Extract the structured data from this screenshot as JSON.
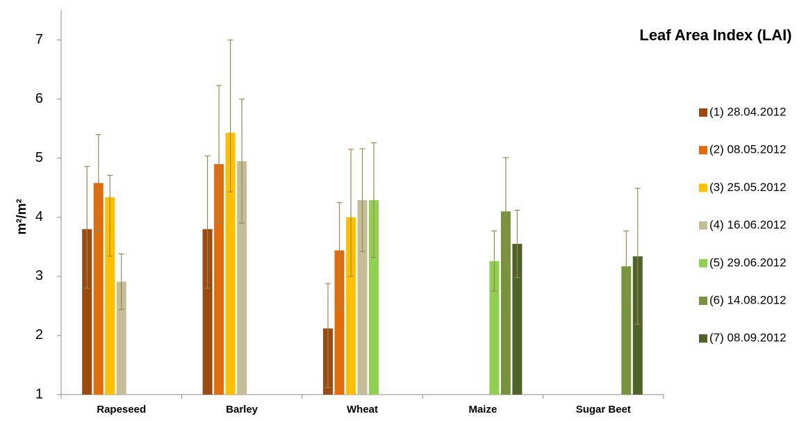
{
  "chart_data": {
    "type": "bar",
    "title": "Leaf Area Index (LAI)",
    "y_label": "m²/m²",
    "categories": [
      "Rapeseed",
      "Barley",
      "Wheat",
      "Maize",
      "Sugar Beet"
    ],
    "ylim": [
      1,
      7.5
    ],
    "yticks": [
      1,
      2,
      3,
      4,
      5,
      6,
      7
    ],
    "error_color": "#948a54",
    "series": [
      {
        "name": "(1) 28.04.2012",
        "color": "#9c4a0e",
        "values": [
          3.8,
          3.8,
          2.12,
          null,
          null
        ],
        "error_plus": [
          1.06,
          1.24,
          0.76,
          null,
          null
        ],
        "error_minus": [
          1.0,
          1.0,
          1.0,
          null,
          null
        ]
      },
      {
        "name": "(2) 08.05.2012",
        "color": "#e36c0a",
        "values": [
          4.58,
          4.9,
          3.44,
          null,
          null
        ],
        "error_plus": [
          0.82,
          1.33,
          0.81,
          null,
          null
        ],
        "error_minus": [
          0.82,
          1.0,
          1.0,
          null,
          null
        ]
      },
      {
        "name": "(3) 25.05.2012",
        "color": "#ffc000",
        "values": [
          4.34,
          5.43,
          4.0,
          null,
          null
        ],
        "error_plus": [
          0.37,
          1.57,
          1.15,
          null,
          null
        ],
        "error_minus": [
          1.0,
          1.0,
          1.0,
          null,
          null
        ]
      },
      {
        "name": "(4) 16.06.2012",
        "color": "#c4bd97",
        "values": [
          2.91,
          4.95,
          4.29,
          null,
          null
        ],
        "error_plus": [
          0.47,
          1.05,
          0.87,
          null,
          null
        ],
        "error_minus": [
          0.47,
          1.05,
          0.87,
          null,
          null
        ]
      },
      {
        "name": "(5) 29.06.2012",
        "color": "#92d050",
        "values": [
          null,
          null,
          4.29,
          3.26,
          null
        ],
        "error_plus": [
          null,
          null,
          0.97,
          0.51,
          null
        ],
        "error_minus": [
          null,
          null,
          0.97,
          0.51,
          null
        ]
      },
      {
        "name": "(6) 14.08.2012",
        "color": "#77933c",
        "values": [
          null,
          null,
          null,
          4.1,
          3.17
        ],
        "error_plus": [
          null,
          null,
          null,
          0.91,
          0.6
        ],
        "error_minus": [
          null,
          null,
          null,
          0.91,
          0.6
        ]
      },
      {
        "name": "(7) 08.09.2012",
        "color": "#4f6228",
        "values": [
          null,
          null,
          null,
          3.55,
          3.34
        ],
        "error_plus": [
          null,
          null,
          null,
          0.57,
          1.15
        ],
        "error_minus": [
          null,
          null,
          null,
          0.57,
          1.15
        ]
      }
    ]
  }
}
